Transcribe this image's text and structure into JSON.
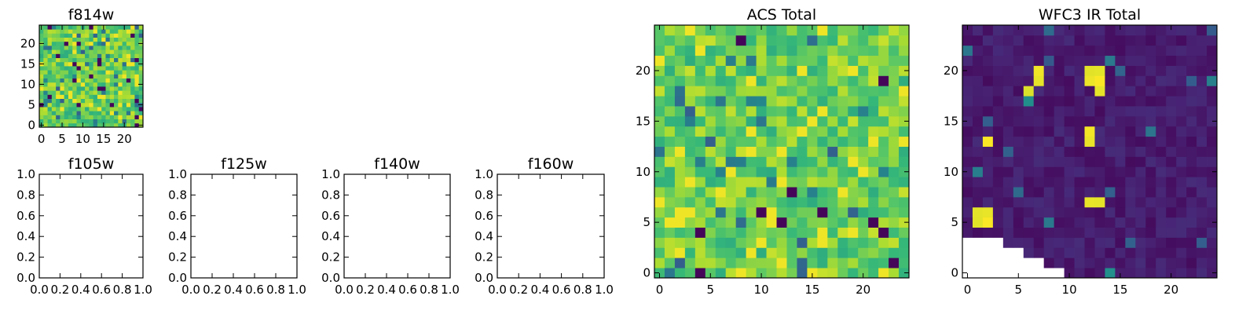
{
  "chart_data": [
    {
      "type": "heatmap",
      "title": "f814w",
      "x": {
        "ticks": [
          0,
          5,
          10,
          15,
          20
        ],
        "range": [
          -0.5,
          24.5
        ]
      },
      "y": {
        "ticks": [
          0,
          5,
          10,
          15,
          20
        ],
        "range": [
          -0.5,
          24.5
        ]
      },
      "grid_size": [
        25,
        25
      ],
      "colormap": "viridis",
      "pattern": "acs",
      "seed": 17,
      "grid": false
    },
    {
      "type": "empty",
      "title": "f105w",
      "x": {
        "ticks": [
          "0.0",
          "0.2",
          "0.4",
          "0.6",
          "0.8",
          "1.0"
        ],
        "range": [
          0,
          1
        ]
      },
      "y": {
        "ticks": [
          "0.0",
          "0.2",
          "0.4",
          "0.6",
          "0.8",
          "1.0"
        ],
        "range": [
          0,
          1
        ]
      },
      "grid": false
    },
    {
      "type": "empty",
      "title": "f125w",
      "x": {
        "ticks": [
          "0.0",
          "0.2",
          "0.4",
          "0.6",
          "0.8",
          "1.0"
        ],
        "range": [
          0,
          1
        ]
      },
      "y": {
        "ticks": [
          "0.0",
          "0.2",
          "0.4",
          "0.6",
          "0.8",
          "1.0"
        ],
        "range": [
          0,
          1
        ]
      },
      "grid": false
    },
    {
      "type": "empty",
      "title": "f140w",
      "x": {
        "ticks": [
          "0.0",
          "0.2",
          "0.4",
          "0.6",
          "0.8",
          "1.0"
        ],
        "range": [
          0,
          1
        ]
      },
      "y": {
        "ticks": [
          "0.0",
          "0.2",
          "0.4",
          "0.6",
          "0.8",
          "1.0"
        ],
        "range": [
          0,
          1
        ]
      },
      "grid": false
    },
    {
      "type": "empty",
      "title": "f160w",
      "x": {
        "ticks": [
          "0.0",
          "0.2",
          "0.4",
          "0.6",
          "0.8",
          "1.0"
        ],
        "range": [
          0,
          1
        ]
      },
      "y": {
        "ticks": [
          "0.0",
          "0.2",
          "0.4",
          "0.6",
          "0.8",
          "1.0"
        ],
        "range": [
          0,
          1
        ]
      },
      "grid": false
    },
    {
      "type": "heatmap",
      "title": "ACS Total",
      "x": {
        "ticks": [
          0,
          5,
          10,
          15,
          20
        ],
        "range": [
          -0.5,
          24.5
        ]
      },
      "y": {
        "ticks": [
          0,
          5,
          10,
          15,
          20
        ],
        "range": [
          -0.5,
          24.5
        ]
      },
      "grid_size": [
        25,
        25
      ],
      "colormap": "viridis",
      "pattern": "acs",
      "seed": 42,
      "grid": false
    },
    {
      "type": "heatmap",
      "title": "WFC3 IR Total",
      "x": {
        "ticks": [
          0,
          5,
          10,
          15,
          20
        ],
        "range": [
          -0.5,
          24.5
        ]
      },
      "y": {
        "ticks": [
          0,
          5,
          10,
          15,
          20
        ],
        "range": [
          -0.5,
          24.5
        ]
      },
      "grid_size": [
        25,
        25
      ],
      "colormap": "viridis",
      "pattern": "ir",
      "seed": 7,
      "hot_spots": [
        [
          7,
          19
        ],
        [
          7,
          20
        ],
        [
          12,
          19
        ],
        [
          12,
          20
        ],
        [
          13,
          19
        ],
        [
          13,
          20
        ],
        [
          12,
          13
        ],
        [
          12,
          14
        ],
        [
          2,
          13
        ],
        [
          2,
          6
        ],
        [
          1,
          6
        ],
        [
          1,
          5
        ],
        [
          2,
          5
        ],
        [
          12,
          7
        ],
        [
          13,
          7
        ],
        [
          6,
          18
        ],
        [
          13,
          18
        ]
      ],
      "masked_region": "bottom-left triangle",
      "grid": false
    }
  ]
}
